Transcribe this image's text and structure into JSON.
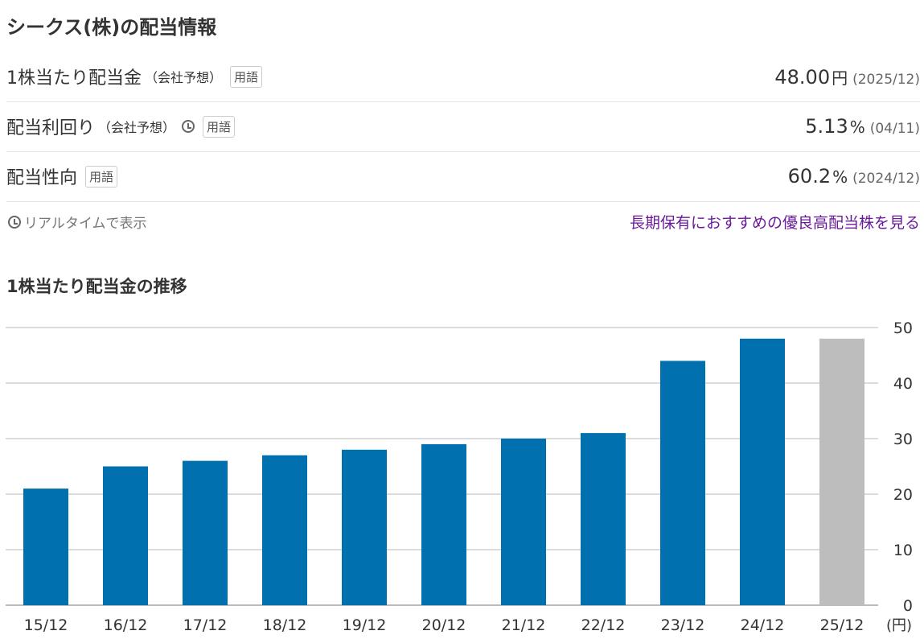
{
  "title": "シークス(株)の配当情報",
  "rows": [
    {
      "label": "1株当たり配当金",
      "sub": "（会社予想）",
      "tag": "用語",
      "value": "48.00",
      "unit": "円",
      "date": "(2025/12)",
      "clock": false
    },
    {
      "label": "配当利回り",
      "sub": "（会社予想）",
      "tag": "用語",
      "value": "5.13",
      "unit": "%",
      "date": "(04/11)",
      "clock": true
    },
    {
      "label": "配当性向",
      "sub": "",
      "tag": "用語",
      "value": "60.2",
      "unit": "%",
      "date": "(2024/12)",
      "clock": false
    }
  ],
  "realtime": "リアルタイムで表示",
  "link": "長期保有におすすめの優良高配当株を見る",
  "chart_data": {
    "type": "bar",
    "title": "1株当たり配当金の推移",
    "categories": [
      "15/12",
      "16/12",
      "17/12",
      "18/12",
      "19/12",
      "20/12",
      "21/12",
      "22/12",
      "23/12",
      "24/12",
      "25/12"
    ],
    "values": [
      21,
      25,
      26,
      27,
      28,
      29,
      30,
      31,
      44,
      48,
      48
    ],
    "forecast": [
      false,
      false,
      false,
      false,
      false,
      false,
      false,
      false,
      false,
      false,
      true
    ],
    "ylim": [
      0,
      50
    ],
    "yticks": [
      0,
      10,
      20,
      30,
      40,
      50
    ],
    "ylabel": "(円)",
    "colors": {
      "actual": "#0071ae",
      "forecast": "#bdbdbd"
    },
    "grid": true
  }
}
